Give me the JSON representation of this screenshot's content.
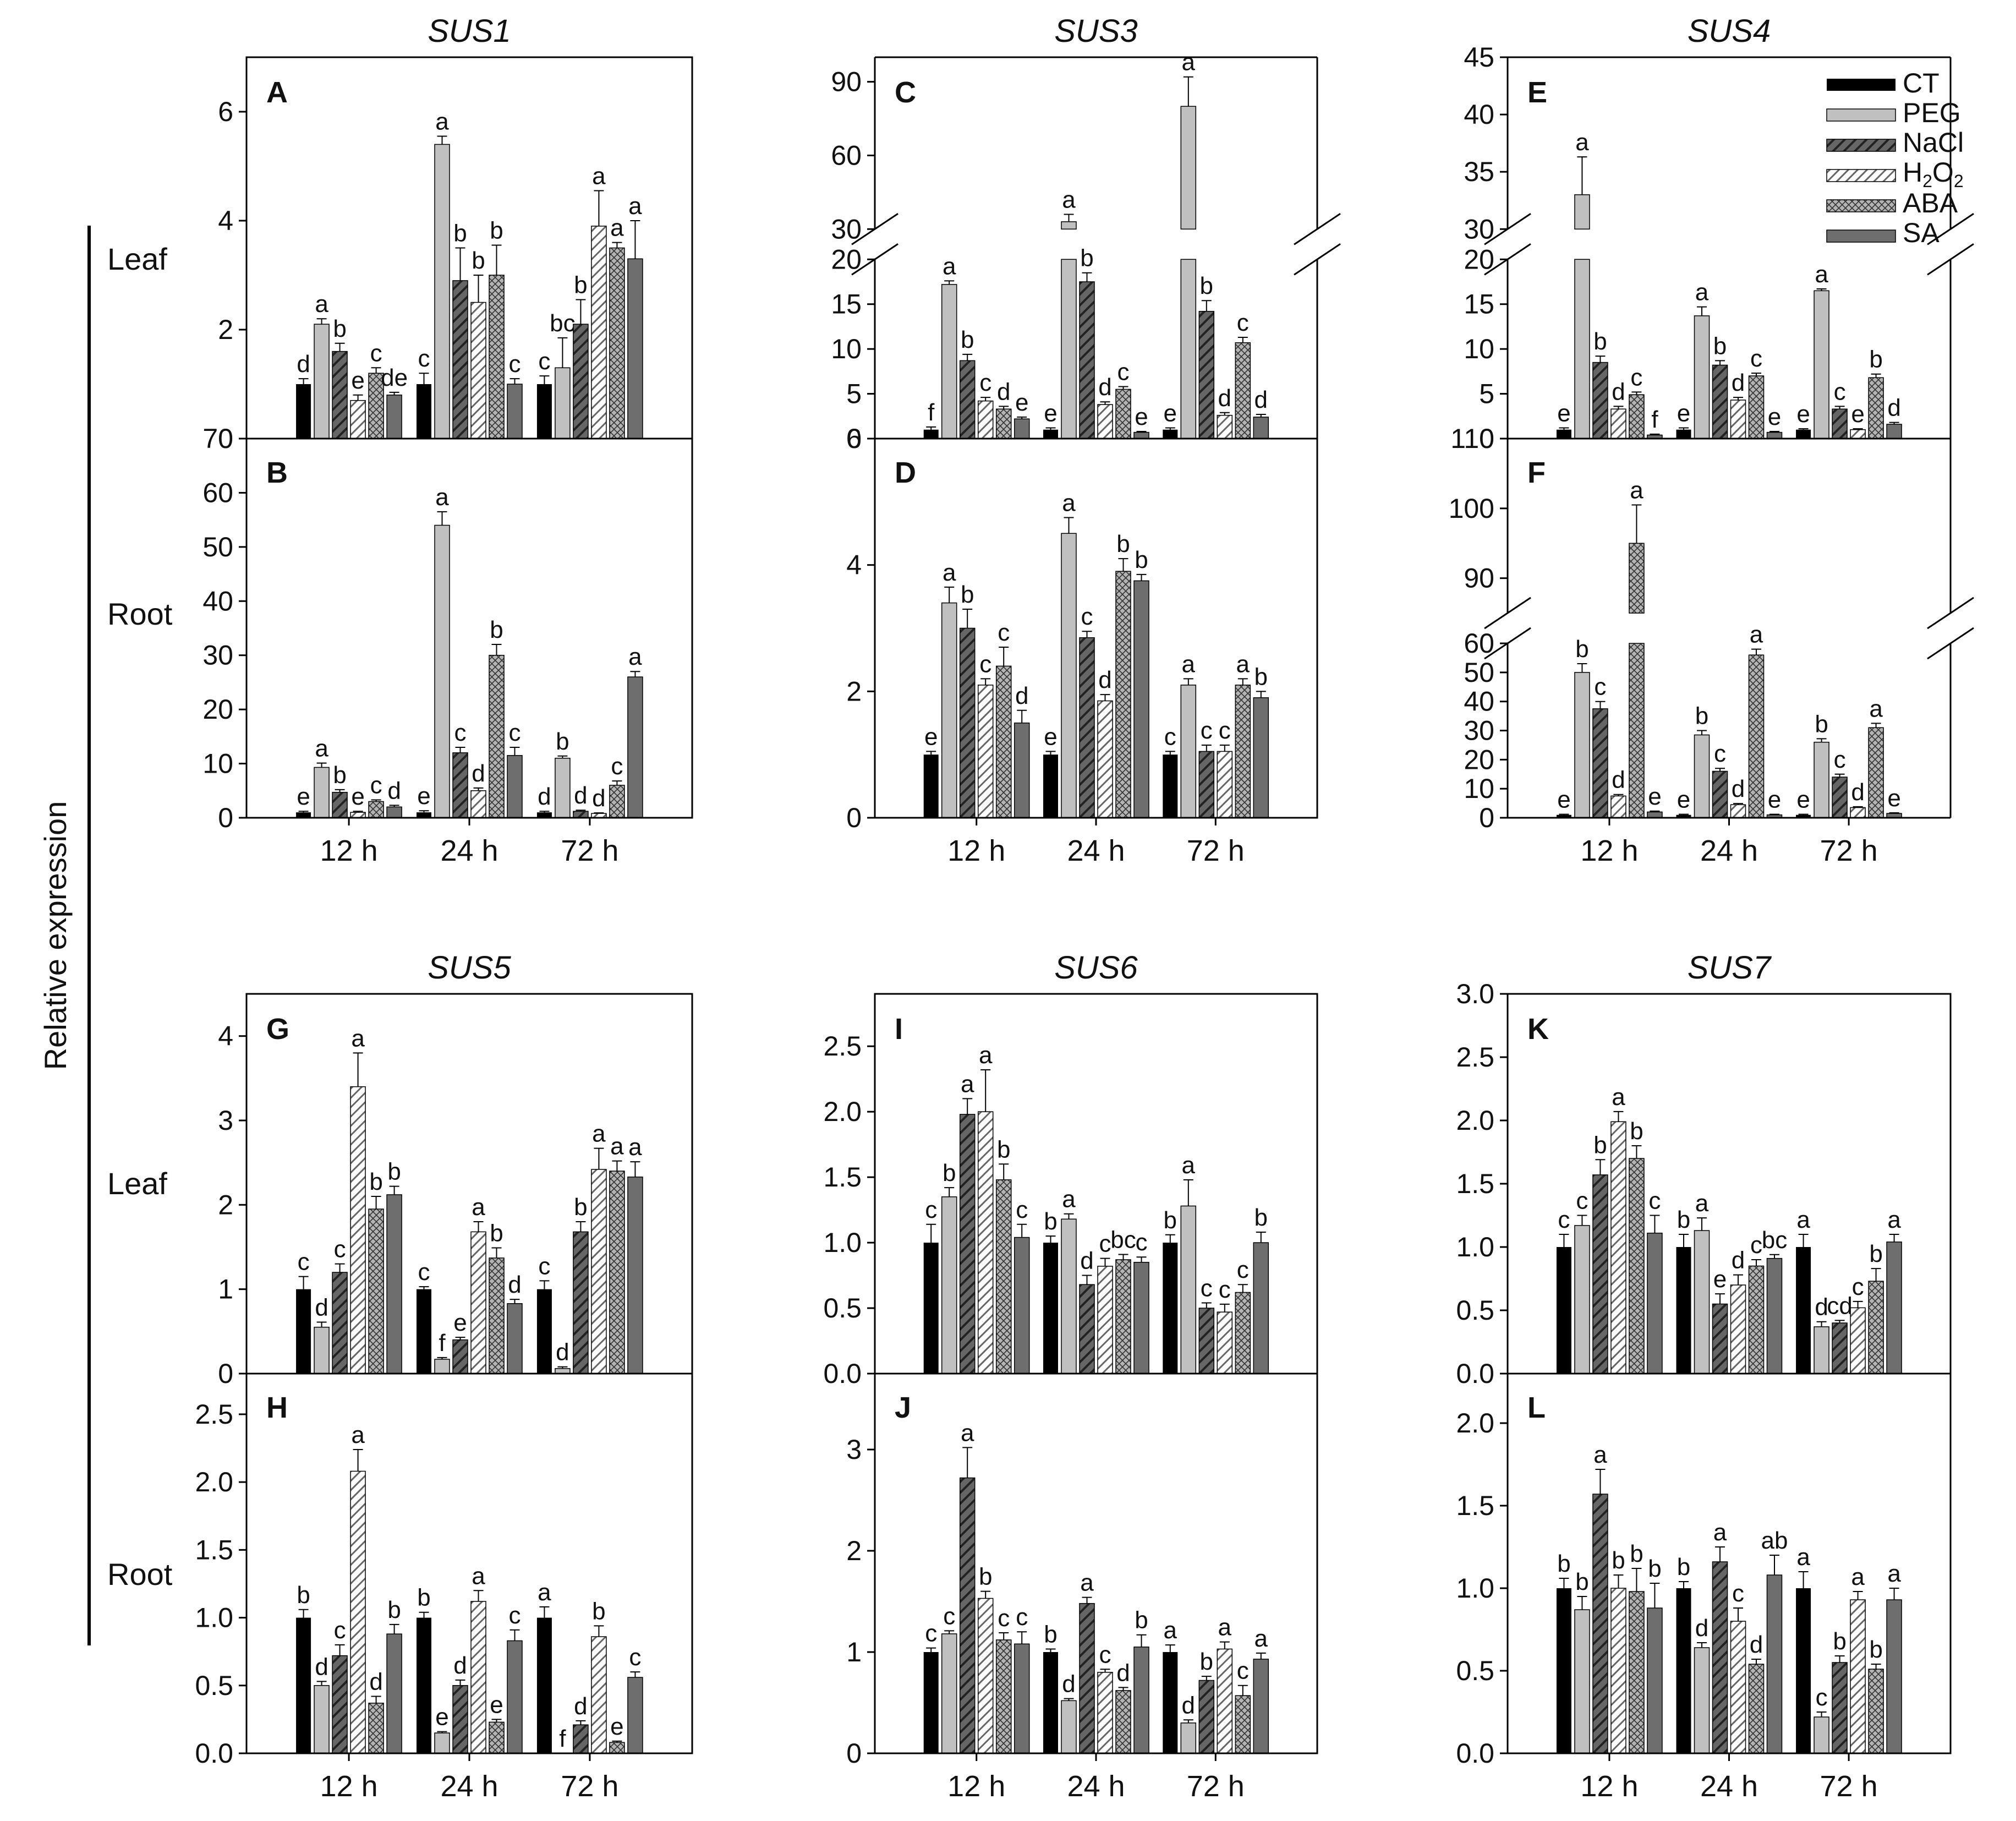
{
  "figure": {
    "y_axis_label": "Relative expression",
    "row_labels": [
      "Leaf",
      "Root",
      "Leaf",
      "Root"
    ]
  },
  "legend": {
    "entries": [
      "CT",
      "PEG",
      "NaCl",
      "H2O2",
      "ABA",
      "SA"
    ],
    "h2o2_main": "H",
    "h2o2_sub1": "2",
    "h2o2_mid": "O",
    "h2o2_sub2": "2"
  },
  "chart_data": [
    {
      "type": "bar",
      "panel": "A",
      "title": "SUS1",
      "row": "Leaf",
      "categories": [
        "12 h",
        "24 h",
        "72 h"
      ],
      "series_names": [
        "CT",
        "PEG",
        "NaCl",
        "H2O2",
        "ABA",
        "SA"
      ],
      "yticks": [
        0,
        2,
        4,
        6
      ],
      "ylim": [
        0,
        7
      ],
      "values": [
        [
          1.0,
          2.1,
          1.6,
          0.7,
          1.2,
          0.8
        ],
        [
          1.0,
          5.4,
          2.9,
          2.5,
          3.0,
          1.0
        ],
        [
          1.0,
          1.3,
          2.1,
          3.9,
          3.5,
          3.3
        ]
      ],
      "errors": [
        [
          0.1,
          0.1,
          0.15,
          0.1,
          0.1,
          0.05
        ],
        [
          0.2,
          0.15,
          0.6,
          0.5,
          0.55,
          0.1
        ],
        [
          0.15,
          0.55,
          0.45,
          0.65,
          0.1,
          0.7
        ]
      ],
      "letters": [
        [
          "d",
          "a",
          "b",
          "e",
          "c",
          "de"
        ],
        [
          "c",
          "a",
          "b",
          "b",
          "b",
          "c"
        ],
        [
          "c",
          "bc",
          "b",
          "a",
          "a",
          "a"
        ]
      ]
    },
    {
      "type": "bar",
      "panel": "B",
      "title": "",
      "row": "Root",
      "categories": [
        "12 h",
        "24 h",
        "72 h"
      ],
      "yticks": [
        0,
        10,
        20,
        30,
        40,
        50,
        60,
        70
      ],
      "ylim": [
        0,
        70
      ],
      "values": [
        [
          1.0,
          9.3,
          4.7,
          1.0,
          3.0,
          2.0
        ],
        [
          1.0,
          54.0,
          12.0,
          5.0,
          30.0,
          11.5
        ],
        [
          1.0,
          11.0,
          1.2,
          0.8,
          6.0,
          26.0
        ]
      ],
      "errors": [
        [
          0.2,
          0.8,
          0.5,
          0.2,
          0.3,
          0.3
        ],
        [
          0.3,
          2.5,
          1.0,
          0.5,
          2.0,
          1.5
        ],
        [
          0.2,
          0.4,
          0.2,
          0.1,
          0.8,
          1.0
        ]
      ],
      "letters": [
        [
          "e",
          "a",
          "b",
          "e",
          "c",
          "d"
        ],
        [
          "e",
          "a",
          "c",
          "d",
          "b",
          "c"
        ],
        [
          "d",
          "b",
          "d",
          "d",
          "c",
          "a"
        ]
      ]
    },
    {
      "type": "bar",
      "panel": "C",
      "title": "SUS3",
      "row": "Leaf",
      "categories": [
        "12 h",
        "24 h",
        "72 h"
      ],
      "axis_break": {
        "lower_range": [
          0,
          20
        ],
        "upper_range": [
          30,
          100
        ]
      },
      "yticks_lower": [
        0,
        5,
        10,
        15,
        20
      ],
      "yticks_upper": [
        30,
        60,
        90
      ],
      "values": [
        [
          1.0,
          17.2,
          8.7,
          4.2,
          3.3,
          2.2
        ],
        [
          1.0,
          33.0,
          17.5,
          3.8,
          5.5,
          0.7
        ],
        [
          1.0,
          80.0,
          14.2,
          2.6,
          10.7,
          2.4
        ]
      ],
      "errors": [
        [
          0.3,
          0.4,
          0.7,
          0.4,
          0.3,
          0.2
        ],
        [
          0.2,
          3.0,
          1.0,
          0.3,
          0.3,
          0.1
        ],
        [
          0.2,
          12.0,
          1.2,
          0.3,
          0.6,
          0.3
        ]
      ],
      "letters": [
        [
          "f",
          "a",
          "b",
          "c",
          "d",
          "e"
        ],
        [
          "e",
          "a",
          "b",
          "d",
          "c",
          "e"
        ],
        [
          "e",
          "a",
          "b",
          "d",
          "c",
          "d"
        ]
      ]
    },
    {
      "type": "bar",
      "panel": "D",
      "title": "",
      "row": "Root",
      "categories": [
        "12 h",
        "24 h",
        "72 h"
      ],
      "yticks": [
        0,
        2,
        4,
        6
      ],
      "ylim": [
        0,
        6
      ],
      "values": [
        [
          1.0,
          3.4,
          3.0,
          2.1,
          2.4,
          1.5
        ],
        [
          1.0,
          4.5,
          2.85,
          1.85,
          3.9,
          3.75
        ],
        [
          1.0,
          2.1,
          1.05,
          1.05,
          2.1,
          1.9
        ]
      ],
      "errors": [
        [
          0.05,
          0.25,
          0.3,
          0.1,
          0.3,
          0.2
        ],
        [
          0.05,
          0.25,
          0.1,
          0.1,
          0.2,
          0.1
        ],
        [
          0.05,
          0.1,
          0.1,
          0.1,
          0.1,
          0.1
        ]
      ],
      "letters": [
        [
          "e",
          "a",
          "b",
          "c",
          "c",
          "d"
        ],
        [
          "e",
          "a",
          "c",
          "d",
          "b",
          "b"
        ],
        [
          "c",
          "a",
          "c",
          "c",
          "a",
          "b"
        ]
      ]
    },
    {
      "type": "bar",
      "panel": "E",
      "title": "SUS4",
      "row": "Leaf",
      "categories": [
        "12 h",
        "24 h",
        "72 h"
      ],
      "axis_break": {
        "lower_range": [
          0,
          20
        ],
        "upper_range": [
          30,
          45
        ]
      },
      "yticks_lower": [
        0,
        5,
        10,
        15,
        20
      ],
      "yticks_upper": [
        30,
        35,
        40,
        45
      ],
      "values": [
        [
          1.0,
          33.0,
          8.5,
          3.3,
          4.9,
          0.4
        ],
        [
          1.0,
          13.7,
          8.2,
          4.3,
          7.0,
          0.7
        ],
        [
          1.0,
          16.5,
          3.3,
          1.0,
          6.8,
          1.6
        ]
      ],
      "errors": [
        [
          0.2,
          3.3,
          0.7,
          0.3,
          0.3,
          0.1
        ],
        [
          0.2,
          1.0,
          0.5,
          0.3,
          0.3,
          0.1
        ],
        [
          0.1,
          0.2,
          0.3,
          0.1,
          0.4,
          0.2
        ]
      ],
      "letters": [
        [
          "e",
          "a",
          "b",
          "d",
          "c",
          "f"
        ],
        [
          "e",
          "a",
          "b",
          "d",
          "c",
          "e"
        ],
        [
          "e",
          "a",
          "c",
          "e",
          "b",
          "d"
        ]
      ]
    },
    {
      "type": "bar",
      "panel": "F",
      "title": "",
      "row": "Root",
      "categories": [
        "12 h",
        "24 h",
        "72 h"
      ],
      "axis_break": {
        "lower_range": [
          0,
          60
        ],
        "upper_range": [
          85,
          110
        ]
      },
      "yticks_lower": [
        0,
        10,
        20,
        30,
        40,
        50,
        60
      ],
      "yticks_upper": [
        90,
        100,
        110
      ],
      "values": [
        [
          1.0,
          50.0,
          37.5,
          7.5,
          95.0,
          2.0
        ],
        [
          1.0,
          28.5,
          16.0,
          4.5,
          56.0,
          1.0
        ],
        [
          1.0,
          26.0,
          14.0,
          3.5,
          31.0,
          1.5
        ]
      ],
      "errors": [
        [
          0.2,
          3.0,
          2.5,
          0.5,
          5.5,
          0.3
        ],
        [
          0.2,
          1.5,
          1.0,
          0.4,
          2.0,
          0.2
        ],
        [
          0.2,
          1.2,
          1.0,
          0.3,
          1.5,
          0.2
        ]
      ],
      "letters": [
        [
          "e",
          "b",
          "c",
          "d",
          "a",
          "e"
        ],
        [
          "e",
          "b",
          "c",
          "d",
          "a",
          "e"
        ],
        [
          "e",
          "b",
          "c",
          "d",
          "a",
          "e"
        ]
      ]
    },
    {
      "type": "bar",
      "panel": "G",
      "title": "SUS5",
      "row": "Leaf",
      "categories": [
        "12 h",
        "24 h",
        "72 h"
      ],
      "yticks": [
        0,
        1,
        2,
        3,
        4
      ],
      "ylim": [
        0,
        4.5
      ],
      "values": [
        [
          1.0,
          0.55,
          1.2,
          3.4,
          1.95,
          2.12
        ],
        [
          1.0,
          0.17,
          0.4,
          1.68,
          1.37,
          0.83
        ],
        [
          1.0,
          0.06,
          1.68,
          2.42,
          2.4,
          2.33
        ]
      ],
      "errors": [
        [
          0.15,
          0.06,
          0.1,
          0.4,
          0.15,
          0.1
        ],
        [
          0.03,
          0.02,
          0.03,
          0.12,
          0.12,
          0.05
        ],
        [
          0.1,
          0.02,
          0.12,
          0.25,
          0.12,
          0.18
        ]
      ],
      "letters": [
        [
          "c",
          "d",
          "c",
          "a",
          "b",
          "b"
        ],
        [
          "c",
          "f",
          "e",
          "a",
          "b",
          "d"
        ],
        [
          "c",
          "d",
          "b",
          "a",
          "a",
          "a"
        ]
      ]
    },
    {
      "type": "bar",
      "panel": "H",
      "title": "",
      "row": "Root",
      "categories": [
        "12 h",
        "24 h",
        "72 h"
      ],
      "yticks": [
        0.0,
        0.5,
        1.0,
        1.5,
        2.0,
        2.5
      ],
      "ylim": [
        0,
        2.8
      ],
      "values": [
        [
          1.0,
          0.5,
          0.72,
          2.08,
          0.37,
          0.88
        ],
        [
          1.0,
          0.15,
          0.5,
          1.12,
          0.23,
          0.83
        ],
        [
          1.0,
          0.0,
          0.21,
          0.86,
          0.08,
          0.56
        ]
      ],
      "errors": [
        [
          0.06,
          0.03,
          0.08,
          0.16,
          0.05,
          0.07
        ],
        [
          0.04,
          0.01,
          0.04,
          0.08,
          0.02,
          0.08
        ],
        [
          0.08,
          0.0,
          0.03,
          0.08,
          0.01,
          0.04
        ]
      ],
      "letters": [
        [
          "b",
          "d",
          "c",
          "a",
          "d",
          "b"
        ],
        [
          "b",
          "e",
          "d",
          "a",
          "e",
          "c"
        ],
        [
          "a",
          "f",
          "d",
          "b",
          "e",
          "c"
        ]
      ]
    },
    {
      "type": "bar",
      "panel": "I",
      "title": "SUS6",
      "row": "Leaf",
      "categories": [
        "12 h",
        "24 h",
        "72 h"
      ],
      "yticks": [
        0.0,
        0.5,
        1.0,
        1.5,
        2.0,
        2.5
      ],
      "ylim": [
        0,
        2.9
      ],
      "values": [
        [
          1.0,
          1.35,
          1.98,
          2.0,
          1.48,
          1.04
        ],
        [
          1.0,
          1.18,
          0.68,
          0.82,
          0.87,
          0.85
        ],
        [
          1.0,
          1.28,
          0.5,
          0.47,
          0.62,
          1.0
        ]
      ],
      "errors": [
        [
          0.14,
          0.07,
          0.12,
          0.32,
          0.12,
          0.1
        ],
        [
          0.05,
          0.04,
          0.07,
          0.06,
          0.04,
          0.04
        ],
        [
          0.06,
          0.2,
          0.04,
          0.06,
          0.06,
          0.08
        ]
      ],
      "letters": [
        [
          "c",
          "b",
          "a",
          "a",
          "b",
          "c"
        ],
        [
          "b",
          "a",
          "d",
          "c",
          "bc",
          "c"
        ],
        [
          "b",
          "a",
          "c",
          "c",
          "c",
          "b"
        ]
      ]
    },
    {
      "type": "bar",
      "panel": "J",
      "title": "",
      "row": "Root",
      "categories": [
        "12 h",
        "24 h",
        "72 h"
      ],
      "yticks": [
        0,
        1,
        2,
        3
      ],
      "ylim": [
        0,
        3.75
      ],
      "values": [
        [
          1.0,
          1.18,
          2.72,
          1.53,
          1.12,
          1.08
        ],
        [
          1.0,
          0.52,
          1.48,
          0.8,
          0.62,
          1.05
        ],
        [
          1.0,
          0.3,
          0.72,
          1.03,
          0.57,
          0.93
        ]
      ],
      "errors": [
        [
          0.04,
          0.03,
          0.3,
          0.07,
          0.07,
          0.12
        ],
        [
          0.03,
          0.02,
          0.06,
          0.03,
          0.03,
          0.12
        ],
        [
          0.07,
          0.03,
          0.04,
          0.07,
          0.1,
          0.06
        ]
      ],
      "letters": [
        [
          "c",
          "c",
          "a",
          "b",
          "c",
          "c"
        ],
        [
          "b",
          "d",
          "a",
          "c",
          "d",
          "b"
        ],
        [
          "a",
          "d",
          "b",
          "a",
          "c",
          "a"
        ]
      ]
    },
    {
      "type": "bar",
      "panel": "K",
      "title": "SUS7",
      "row": "Leaf",
      "categories": [
        "12 h",
        "24 h",
        "72 h"
      ],
      "yticks": [
        0.0,
        0.5,
        1.0,
        1.5,
        2.0,
        2.5,
        3.0
      ],
      "ylim": [
        0,
        3.0
      ],
      "values": [
        [
          1.0,
          1.17,
          1.57,
          1.99,
          1.7,
          1.11
        ],
        [
          1.0,
          1.13,
          0.55,
          0.7,
          0.85,
          0.91
        ],
        [
          1.0,
          0.37,
          0.4,
          0.52,
          0.73,
          1.04
        ]
      ],
      "errors": [
        [
          0.1,
          0.08,
          0.12,
          0.08,
          0.1,
          0.14
        ],
        [
          0.1,
          0.1,
          0.08,
          0.08,
          0.05,
          0.03
        ],
        [
          0.1,
          0.04,
          0.02,
          0.05,
          0.1,
          0.06
        ]
      ],
      "letters": [
        [
          "c",
          "c",
          "b",
          "a",
          "b",
          "c"
        ],
        [
          "b",
          "a",
          "e",
          "d",
          "c",
          "bc"
        ],
        [
          "a",
          "d",
          "cd",
          "c",
          "b",
          "a"
        ]
      ]
    },
    {
      "type": "bar",
      "panel": "L",
      "title": "",
      "row": "Root",
      "categories": [
        "12 h",
        "24 h",
        "72 h"
      ],
      "yticks": [
        0.0,
        0.5,
        1.0,
        1.5,
        2.0
      ],
      "ylim": [
        0,
        2.3
      ],
      "values": [
        [
          1.0,
          0.87,
          1.57,
          1.0,
          0.98,
          0.88
        ],
        [
          1.0,
          0.64,
          1.16,
          0.8,
          0.54,
          1.08
        ],
        [
          1.0,
          0.22,
          0.55,
          0.93,
          0.51,
          0.93
        ]
      ],
      "errors": [
        [
          0.06,
          0.08,
          0.15,
          0.08,
          0.14,
          0.15
        ],
        [
          0.04,
          0.03,
          0.09,
          0.08,
          0.03,
          0.12
        ],
        [
          0.1,
          0.03,
          0.04,
          0.05,
          0.03,
          0.07
        ]
      ],
      "letters": [
        [
          "b",
          "b",
          "a",
          "b",
          "b",
          "b"
        ],
        [
          "b",
          "d",
          "a",
          "c",
          "d",
          "ab"
        ],
        [
          "a",
          "c",
          "b",
          "a",
          "b",
          "a"
        ]
      ]
    }
  ]
}
